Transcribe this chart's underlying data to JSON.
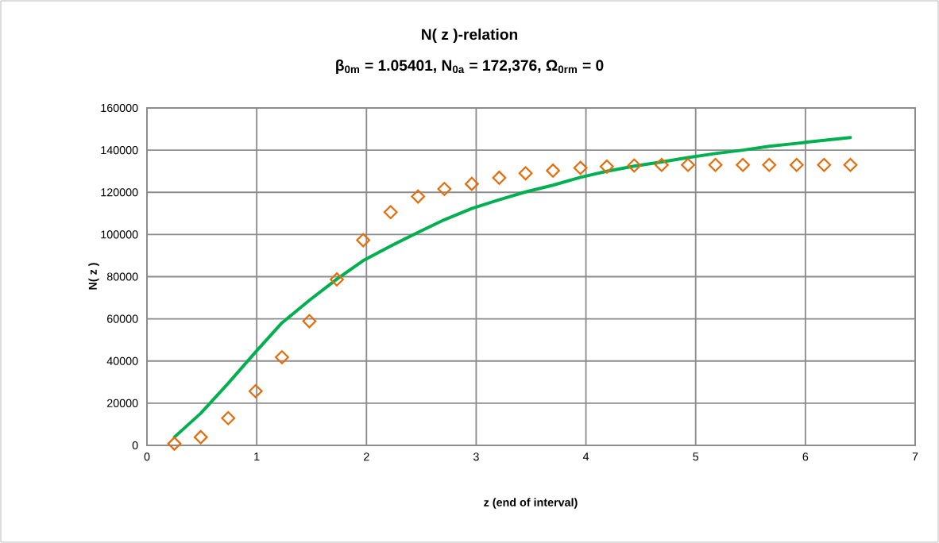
{
  "chart_data": {
    "type": "line",
    "title": "N( z )-relation",
    "subtitle": "β$_{0m}$ = 1.05401,   N$_{0a}$ = 172,376,   Ω$_{0rm}$ = 0",
    "xlabel": "z   (end of interval)",
    "ylabel": "N( z )",
    "x": [
      0.25,
      0.49,
      0.74,
      0.99,
      1.23,
      1.48,
      1.73,
      1.97,
      2.22,
      2.47,
      2.71,
      2.96,
      3.21,
      3.45,
      3.7,
      3.95,
      4.19,
      4.44,
      4.69,
      4.93,
      5.18,
      5.43,
      5.67,
      5.92,
      6.17,
      6.41
    ],
    "series": [
      {
        "color": "#00b050",
        "marker": "none",
        "line_style": "solid",
        "values": [
          3900,
          15200,
          29400,
          44300,
          58100,
          68800,
          78800,
          87600,
          94500,
          101000,
          107000,
          112300,
          116500,
          120200,
          123400,
          127100,
          130000,
          132400,
          134400,
          136500,
          138400,
          140000,
          141800,
          143200,
          144700,
          146000
        ]
      },
      {
        "type": "scatter",
        "color": "#e46c0a",
        "marker": "diamond",
        "values": [
          800,
          3900,
          12900,
          25700,
          41800,
          58900,
          78700,
          97300,
          110600,
          118000,
          121600,
          124000,
          126900,
          129000,
          130300,
          131600,
          132200,
          132700,
          133000,
          133000,
          133000,
          133000,
          133000,
          133000,
          133000,
          133000
        ]
      }
    ],
    "xlim": [
      0,
      7
    ],
    "ylim": [
      0,
      160000
    ],
    "xticks": [
      0,
      1,
      2,
      3,
      4,
      5,
      6,
      7
    ],
    "yticks": [
      0,
      20000,
      40000,
      60000,
      80000,
      100000,
      120000,
      140000,
      160000
    ],
    "grid": true
  }
}
